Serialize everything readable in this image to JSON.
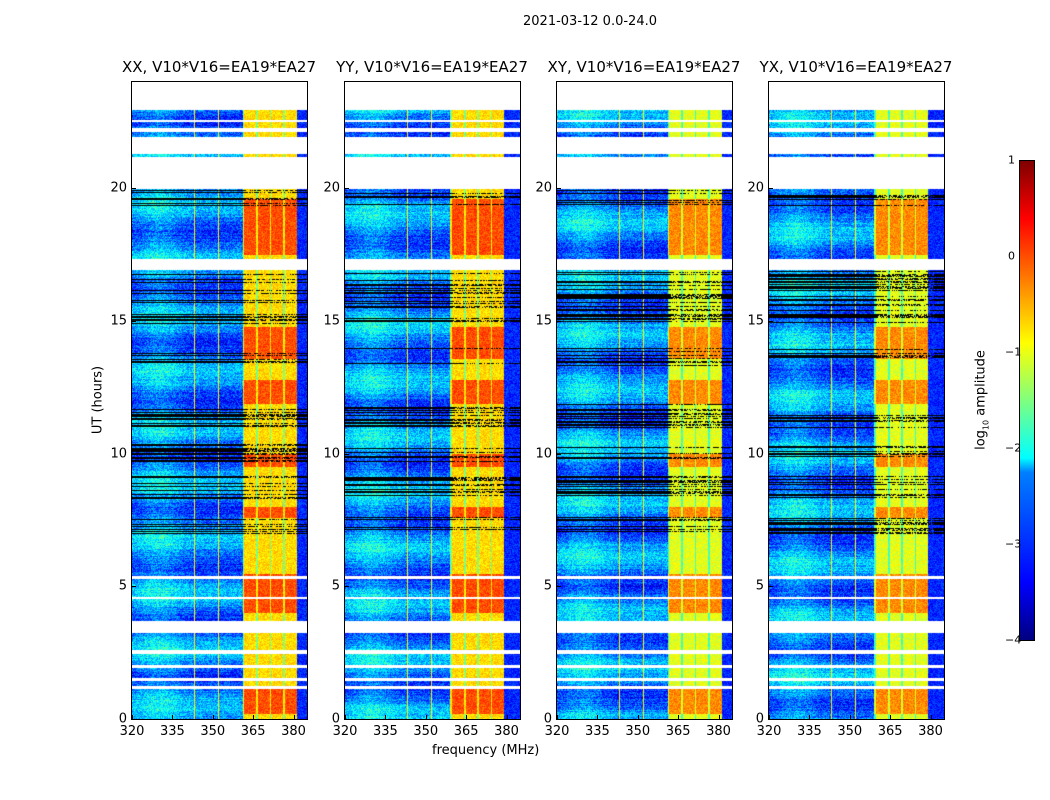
{
  "chart_data": {
    "type": "heatmap",
    "title": "2021-03-12 0.0-24.0",
    "xlabel": "frequency (MHz)",
    "ylabel": "UT (hours)",
    "xlim": [
      320,
      385
    ],
    "ylim": [
      0,
      24
    ],
    "xticks": [
      "320",
      "335",
      "350",
      "365",
      "380"
    ],
    "yticks": [
      "0",
      "5",
      "10",
      "15",
      "20"
    ],
    "panels": [
      {
        "title": "XX, V10*V16=EA19*EA27"
      },
      {
        "title": "YY, V10*V16=EA19*EA27"
      },
      {
        "title": "XY, V10*V16=EA19*EA27"
      },
      {
        "title": "YX, V10*V16=EA19*EA27"
      }
    ],
    "colorbar": {
      "label": "log10 amplitude",
      "range": [
        -4,
        1
      ],
      "ticks": [
        "1",
        "0",
        "−1",
        "−2",
        "−3",
        "−4"
      ],
      "colormap": "jet"
    },
    "bright_band_mhz": [
      361,
      381
    ],
    "background_level": -2.7,
    "band_level": -0.5,
    "flagged_hours": [
      [
        22.95,
        24
      ],
      [
        21.3,
        20.0
      ],
      [
        16.9,
        17.3
      ],
      [
        3.25,
        3.7
      ]
    ]
  }
}
